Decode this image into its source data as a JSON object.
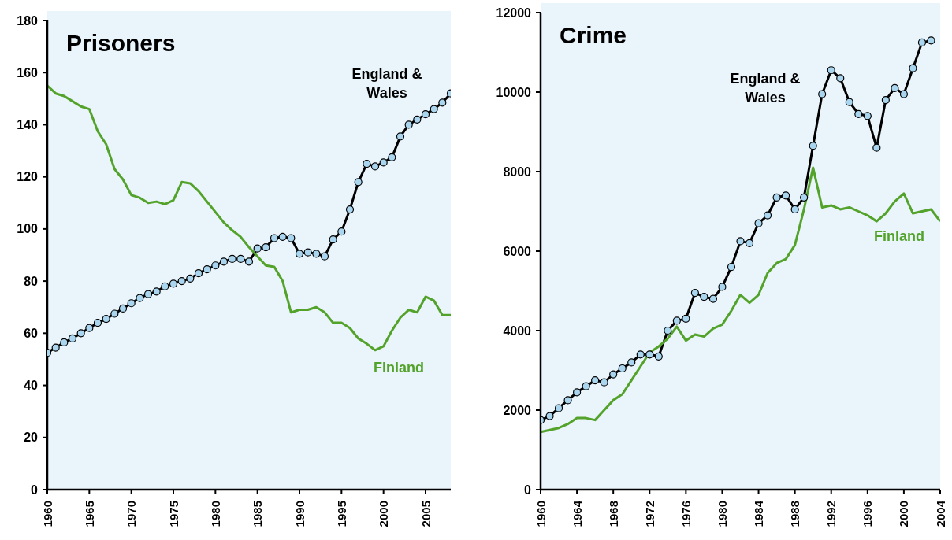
{
  "chart_data": [
    {
      "type": "line",
      "title": "Prisoners",
      "x": [
        1960,
        1961,
        1962,
        1963,
        1964,
        1965,
        1966,
        1967,
        1968,
        1969,
        1970,
        1971,
        1972,
        1973,
        1974,
        1975,
        1976,
        1977,
        1978,
        1979,
        1980,
        1981,
        1982,
        1983,
        1984,
        1985,
        1986,
        1987,
        1988,
        1989,
        1990,
        1991,
        1992,
        1993,
        1994,
        1995,
        1996,
        1997,
        1998,
        1999,
        2000,
        2001,
        2002,
        2003,
        2004,
        2005,
        2006,
        2007,
        2008
      ],
      "series": [
        {
          "name": "England & Wales",
          "color": "#000000",
          "marker": "circle",
          "values": [
            52.5,
            54.5,
            56.5,
            58,
            60,
            62,
            64,
            65.5,
            67.5,
            69.5,
            71.5,
            73.5,
            75,
            76,
            78,
            79,
            80,
            81,
            83,
            84.5,
            86,
            87.5,
            88.5,
            88.5,
            87.5,
            92.5,
            93,
            96.5,
            97,
            96.5,
            90.5,
            91,
            90.5,
            89.5,
            96,
            99,
            107.5,
            118,
            125,
            124,
            125.5,
            127.5,
            135.5,
            140,
            142,
            144,
            146,
            148.5,
            152
          ]
        },
        {
          "name": "Finland",
          "color": "#53a32b",
          "marker": "none",
          "values": [
            155,
            152,
            151,
            149,
            147,
            146,
            137.5,
            132.5,
            123,
            119,
            113,
            112,
            110,
            110.5,
            109.5,
            111,
            118,
            117.5,
            114.5,
            110.5,
            106.5,
            102.5,
            99.5,
            97,
            93,
            89.5,
            86,
            85.5,
            80,
            68,
            69,
            69,
            70,
            68,
            64,
            64,
            62,
            58,
            56,
            53.5,
            55,
            61,
            66,
            69,
            68,
            74,
            72.5,
            67,
            67
          ]
        }
      ],
      "xlim": [
        1960,
        2008
      ],
      "xticks": [
        1960,
        1965,
        1970,
        1975,
        1980,
        1985,
        1990,
        1995,
        2000,
        2005
      ],
      "ylim": [
        0,
        180
      ],
      "yticks": [
        0,
        20,
        40,
        60,
        80,
        100,
        120,
        140,
        160,
        180
      ]
    },
    {
      "type": "line",
      "title": "Crime",
      "x": [
        1960,
        1961,
        1962,
        1963,
        1964,
        1965,
        1966,
        1967,
        1968,
        1969,
        1970,
        1971,
        1972,
        1973,
        1974,
        1975,
        1976,
        1977,
        1978,
        1979,
        1980,
        1981,
        1982,
        1983,
        1984,
        1985,
        1986,
        1987,
        1988,
        1989,
        1990,
        1991,
        1992,
        1993,
        1994,
        1995,
        1996,
        1997,
        1998,
        1999,
        2000,
        2001,
        2002,
        2003,
        2004
      ],
      "series": [
        {
          "name": "England & Wales",
          "color": "#000000",
          "marker": "circle",
          "values": [
            1750,
            1850,
            2050,
            2250,
            2450,
            2600,
            2750,
            2700,
            2900,
            3050,
            3200,
            3400,
            3400,
            3350,
            4000,
            4250,
            4300,
            4950,
            4850,
            4800,
            5100,
            5600,
            6250,
            6200,
            6700,
            6900,
            7350,
            7400,
            7050,
            7350,
            8650,
            9950,
            10550,
            10350,
            9750,
            9450,
            9400,
            8600,
            9800,
            10100,
            9950,
            10600,
            11250,
            11300,
            null
          ]
        },
        {
          "name": "Finland",
          "color": "#53a32b",
          "marker": "none",
          "values": [
            1450,
            1500,
            1550,
            1650,
            1800,
            1800,
            1750,
            2000,
            2250,
            2400,
            2750,
            3100,
            3450,
            3600,
            3800,
            4100,
            3750,
            3900,
            3850,
            4050,
            4150,
            4500,
            4900,
            4700,
            4900,
            5450,
            5700,
            5800,
            6150,
            7050,
            8100,
            7100,
            7150,
            7050,
            7100,
            7000,
            6900,
            6750,
            6950,
            7250,
            7450,
            6950,
            7000,
            7050,
            6750
          ]
        }
      ],
      "xlim": [
        1960,
        2004
      ],
      "xticks": [
        1960,
        1964,
        1968,
        1972,
        1976,
        1980,
        1984,
        1988,
        1992,
        1996,
        2000,
        2004
      ],
      "ylim": [
        0,
        12000
      ],
      "yticks": [
        0,
        2000,
        4000,
        6000,
        8000,
        10000,
        12000
      ]
    }
  ]
}
